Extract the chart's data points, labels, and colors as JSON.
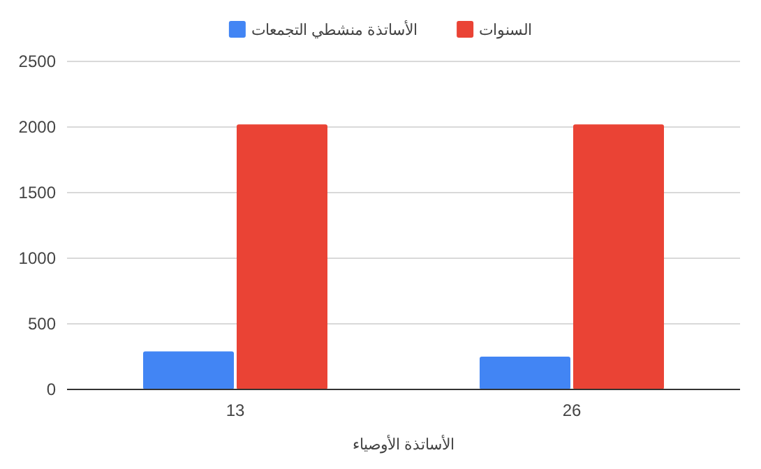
{
  "chart_data": {
    "type": "bar",
    "xlabel": "الأساتذة الأوصياء",
    "categories": [
      "13",
      "26"
    ],
    "series": [
      {
        "name": "الأساتذة منشطي التجمعات",
        "color": "#4285f4",
        "values": [
          290,
          250
        ]
      },
      {
        "name": "السنوات",
        "color": "#ea4335",
        "values": [
          2020,
          2020
        ]
      }
    ],
    "ylim": [
      0,
      2500
    ],
    "yticks": [
      0,
      500,
      1000,
      1500,
      2000,
      2500
    ],
    "grid": "y",
    "legend": "top"
  }
}
